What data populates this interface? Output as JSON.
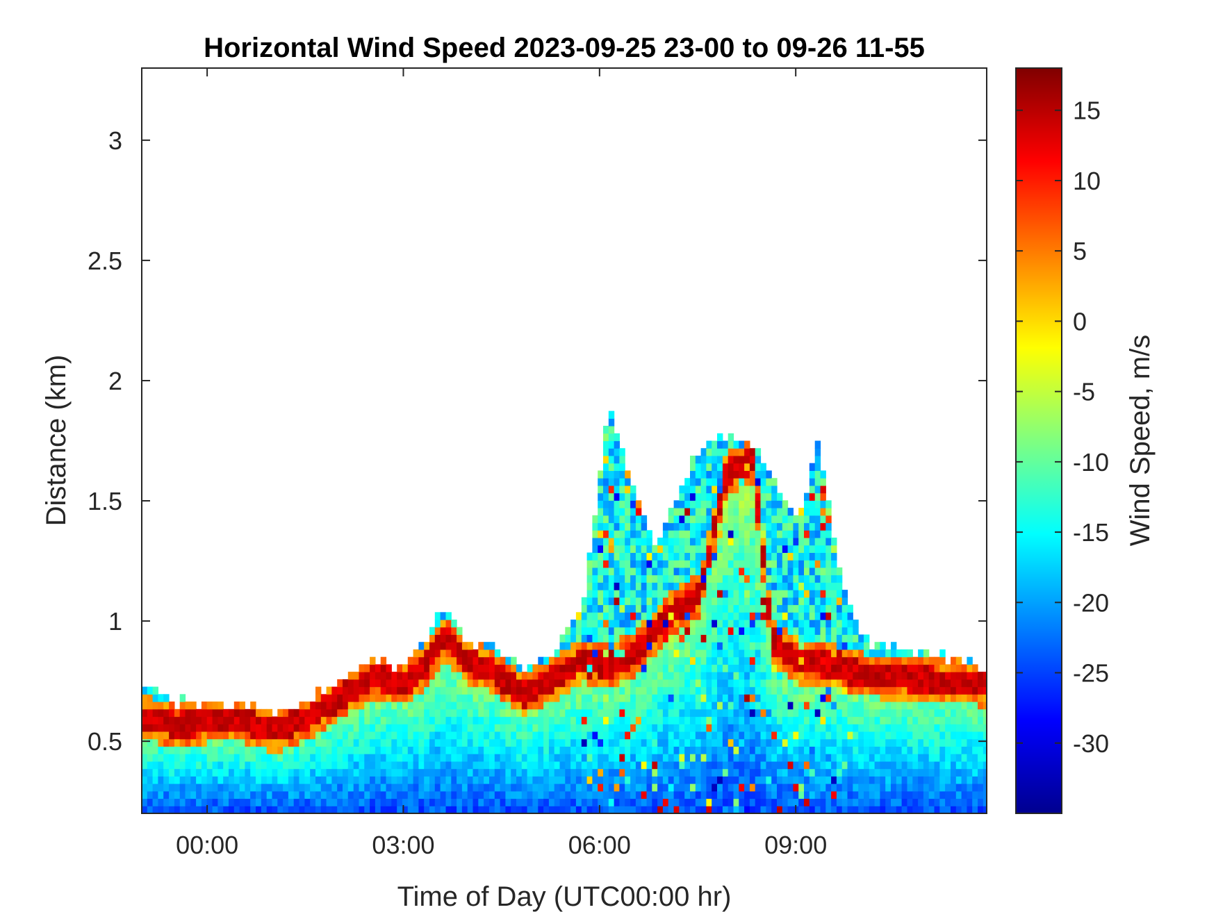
{
  "chart_data": {
    "type": "heatmap",
    "title": "Horizontal Wind Speed 2023-09-25 23-00 to 09-26 11-55",
    "xlabel": "Time of Day (UTC00:00 hr)",
    "ylabel": "Distance (km)",
    "colorbar_label": "Wind Speed, m/s",
    "colormap": "jet",
    "x_ticks": [
      "00:00",
      "03:00",
      "06:00",
      "09:00"
    ],
    "x_tick_hours": [
      0,
      3,
      6,
      9
    ],
    "xlim_hours": [
      -1.0,
      11.92
    ],
    "y_ticks": [
      0.5,
      1,
      1.5,
      2,
      2.5,
      3
    ],
    "y_tick_labels": [
      "0.5",
      "1",
      "1.5",
      "2",
      "2.5",
      "3"
    ],
    "ylim": [
      0.2,
      3.3
    ],
    "colorbar_ticks": [
      15,
      10,
      5,
      0,
      -5,
      -10,
      -15,
      -20,
      -25,
      -30
    ],
    "colorbar_tick_labels": [
      "15",
      "10",
      "5",
      "0",
      "-5",
      "-10",
      "-15",
      "-20",
      "-25",
      "-30"
    ],
    "clim": [
      -35,
      18
    ],
    "profile_top_km": [
      [
        -1.0,
        0.7
      ],
      [
        -0.5,
        0.65
      ],
      [
        0.0,
        0.63
      ],
      [
        0.5,
        0.65
      ],
      [
        1.0,
        0.6
      ],
      [
        1.5,
        0.66
      ],
      [
        2.0,
        0.74
      ],
      [
        2.5,
        0.82
      ],
      [
        3.0,
        0.8
      ],
      [
        3.3,
        0.9
      ],
      [
        3.6,
        1.05
      ],
      [
        3.9,
        0.9
      ],
      [
        4.3,
        0.88
      ],
      [
        4.8,
        0.8
      ],
      [
        5.3,
        0.85
      ],
      [
        5.7,
        1.05
      ],
      [
        6.1,
        1.9
      ],
      [
        6.4,
        1.6
      ],
      [
        6.8,
        1.3
      ],
      [
        7.2,
        1.55
      ],
      [
        7.6,
        1.75
      ],
      [
        8.0,
        1.75
      ],
      [
        8.5,
        1.65
      ],
      [
        9.0,
        1.4
      ],
      [
        9.3,
        1.75
      ],
      [
        9.6,
        1.2
      ],
      [
        10.0,
        0.9
      ],
      [
        11.0,
        0.85
      ],
      [
        11.92,
        0.8
      ]
    ],
    "jet_core_km": [
      [
        -1.0,
        0.58
      ],
      [
        -0.5,
        0.55
      ],
      [
        0.0,
        0.57
      ],
      [
        0.5,
        0.57
      ],
      [
        1.0,
        0.53
      ],
      [
        1.5,
        0.58
      ],
      [
        2.0,
        0.67
      ],
      [
        2.5,
        0.75
      ],
      [
        3.0,
        0.73
      ],
      [
        3.3,
        0.8
      ],
      [
        3.6,
        0.92
      ],
      [
        3.9,
        0.82
      ],
      [
        4.3,
        0.78
      ],
      [
        4.8,
        0.68
      ],
      [
        5.3,
        0.75
      ],
      [
        5.7,
        0.82
      ],
      [
        6.1,
        0.8
      ],
      [
        6.5,
        0.85
      ],
      [
        7.0,
        1.0
      ],
      [
        7.5,
        1.1
      ],
      [
        7.9,
        1.6
      ],
      [
        8.3,
        1.65
      ],
      [
        8.6,
        0.9
      ],
      [
        9.0,
        0.82
      ],
      [
        9.5,
        0.8
      ],
      [
        10.0,
        0.76
      ],
      [
        11.0,
        0.74
      ],
      [
        11.92,
        0.72
      ]
    ]
  }
}
